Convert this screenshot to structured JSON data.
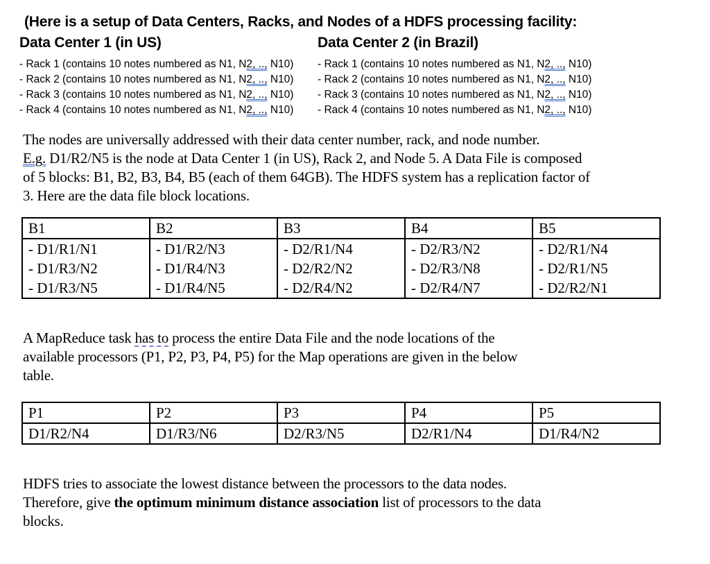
{
  "page": {
    "background": "#ffffff",
    "text_color": "#000000"
  },
  "colors": {
    "grammar_underline": "#3f6cc4",
    "clarity_underline": "#8282dd",
    "table_border": "#000000"
  },
  "intro": {
    "line": "(Here is a setup of Data Centers, Racks, and Nodes of a HDFS processing facility:"
  },
  "datacenters": [
    {
      "title": "Data Center 1 (in US)",
      "racks": [
        {
          "prefix": "- Rack 1 (contains 10 notes numbered as N1, N",
          "flagged": "2, ..,",
          "suffix": " N10)"
        },
        {
          "prefix": "- Rack 2 (contains 10 notes numbered as N1, N",
          "flagged": "2, ..,",
          "suffix": " N10)"
        },
        {
          "prefix": "- Rack 3 (contains 10 notes numbered as N1, N",
          "flagged": "2, ..,",
          "suffix": " N10)"
        },
        {
          "prefix": "- Rack 4 (contains 10 notes numbered as N1, N",
          "flagged": "2, ..,",
          "suffix": " N10)"
        }
      ]
    },
    {
      "title": "Data Center 2 (in Brazil)",
      "racks": [
        {
          "prefix": "- Rack 1 (contains 10 notes numbered as N1, N",
          "flagged": "2, ..,",
          "suffix": " N10)"
        },
        {
          "prefix": "- Rack 2 (contains 10 notes numbered as N1, N",
          "flagged": "2, ..,",
          "suffix": " N10)"
        },
        {
          "prefix": "- Rack 3 (contains 10 notes numbered as N1, N",
          "flagged": "2, ..,",
          "suffix": " N10)"
        },
        {
          "prefix": "- Rack 4 (contains 10 notes numbered as N1, N",
          "flagged": "2, ..,",
          "suffix": " N10)"
        }
      ]
    }
  ],
  "paragraphs": {
    "addressing": {
      "lines": [
        [
          {
            "t": "The nodes are universally addressed with their data center number, rack, and node number."
          }
        ],
        [
          {
            "t": "E.g.",
            "style": "grammar"
          },
          {
            "t": " D1/R2/N5 is the node at Data Center 1 (in US), Rack 2, and Node 5. A Data File is composed"
          }
        ],
        [
          {
            "t": "of 5 blocks: B1, B2, B3, B4, B5 (each of them 64GB). The HDFS system has a replication factor of"
          }
        ],
        [
          {
            "t": "3. Here are the data file block locations."
          }
        ]
      ]
    },
    "mapreduce": {
      "lines": [
        [
          {
            "t": "A MapReduce task "
          },
          {
            "t": "has to",
            "style": "clarity"
          },
          {
            "t": " process the entire Data File and the node locations of the"
          }
        ],
        [
          {
            "t": "available processors (P1, P2, P3, P4, P5) for the Map operations are given in the below"
          }
        ],
        [
          {
            "t": "table."
          }
        ]
      ]
    },
    "question": {
      "lines": [
        [
          {
            "t": "HDFS tries to associate the lowest distance between the processors to the data nodes."
          }
        ],
        [
          {
            "t": "Therefore, give "
          },
          {
            "t": "the optimum minimum distance association",
            "style": "bold"
          },
          {
            "t": " list of processors to the data"
          }
        ],
        [
          {
            "t": "blocks."
          }
        ]
      ]
    }
  },
  "block_table": {
    "headers": [
      "B1",
      "B2",
      "B3",
      "B4",
      "B5"
    ],
    "columns": [
      [
        "- D1/R1/N1",
        "- D1/R3/N2",
        "- D1/R3/N5"
      ],
      [
        "- D1/R2/N3",
        "- D1/R4/N3",
        "- D1/R4/N5"
      ],
      [
        "- D2/R1/N4",
        "- D2/R2/N2",
        "- D2/R4/N2"
      ],
      [
        "- D2/R3/N2",
        "- D2/R3/N8",
        "- D2/R4/N7"
      ],
      [
        "- D2/R1/N4",
        "- D2/R1/N5",
        "- D2/R2/N1"
      ]
    ]
  },
  "processor_table": {
    "headers": [
      "P1",
      "P2",
      "P3",
      "P4",
      "P5"
    ],
    "values": [
      "D1/R2/N4",
      "D1/R3/N6",
      "D2/R3/N5",
      "D2/R1/N4",
      "D1/R4/N2"
    ]
  }
}
